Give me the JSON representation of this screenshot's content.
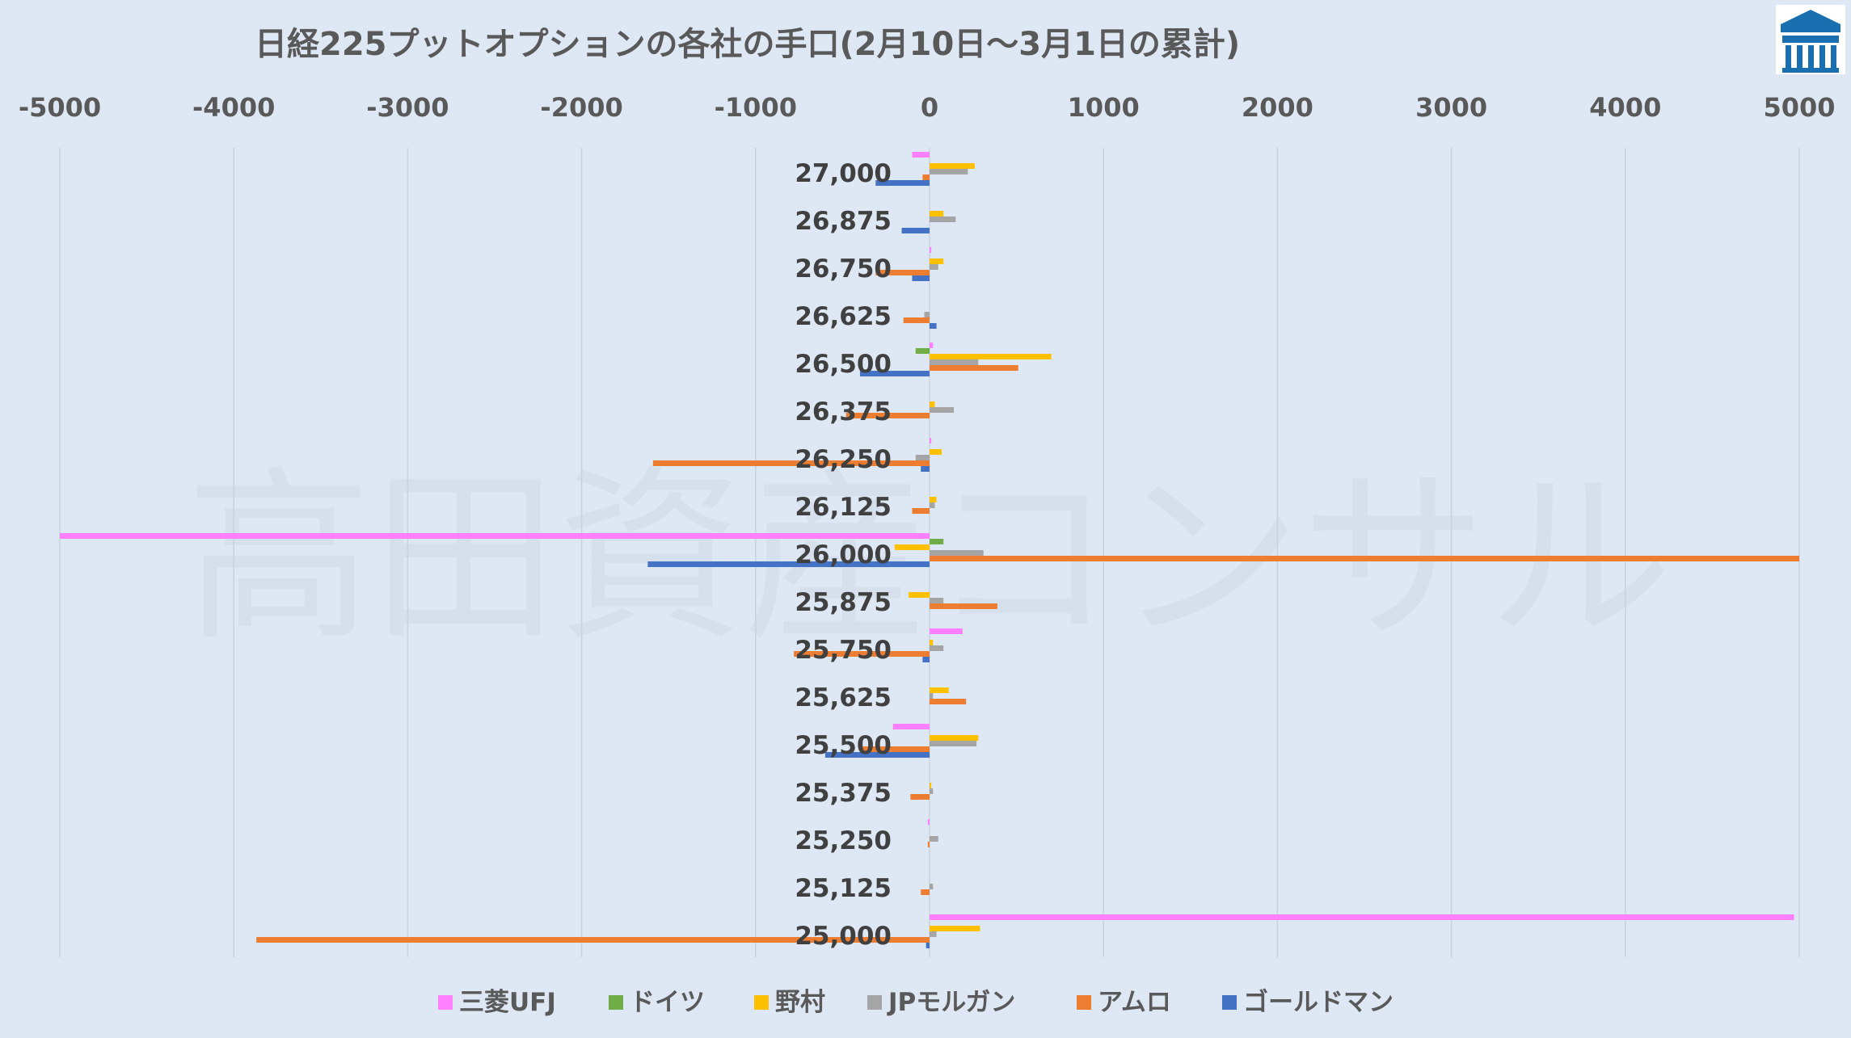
{
  "chart_data": {
    "type": "bar",
    "orientation": "horizontal",
    "title": "日経225プットオプションの各社の手口(2月10日～3月1日の累計)",
    "xlim": [
      -5000,
      5000
    ],
    "xticks": [
      "-5000",
      "-4000",
      "-3000",
      "-2000",
      "-1000",
      "0",
      "1000",
      "2000",
      "3000",
      "4000",
      "5000"
    ],
    "tick_values": [
      -5000,
      -4000,
      -3000,
      -2000,
      -1000,
      0,
      1000,
      2000,
      3000,
      4000,
      5000
    ],
    "grid": true,
    "legend_position": "bottom",
    "categories": [
      "27,000",
      "26,875",
      "26,750",
      "26,625",
      "26,500",
      "26,375",
      "26,250",
      "26,125",
      "26,000",
      "25,875",
      "25,750",
      "25,625",
      "25,500",
      "25,375",
      "25,250",
      "25,125",
      "25,000"
    ],
    "series": [
      {
        "name": "三菱UFJ",
        "color": "#ff80ff",
        "values": [
          -100,
          0,
          10,
          0,
          20,
          0,
          10,
          0,
          -5000,
          0,
          190,
          0,
          -210,
          0,
          -10,
          0,
          4970
        ]
      },
      {
        "name": "ドイツ",
        "color": "#70ad47",
        "values": [
          0,
          0,
          0,
          0,
          -80,
          0,
          0,
          0,
          80,
          0,
          0,
          0,
          0,
          0,
          0,
          0,
          0
        ]
      },
      {
        "name": "野村",
        "color": "#ffc000",
        "values": [
          260,
          80,
          80,
          0,
          700,
          30,
          70,
          40,
          -200,
          -120,
          20,
          110,
          280,
          10,
          0,
          0,
          290
        ]
      },
      {
        "name": "JPモルガン",
        "color": "#a5a5a5",
        "values": [
          220,
          150,
          50,
          -30,
          280,
          140,
          -80,
          30,
          310,
          80,
          80,
          20,
          270,
          20,
          50,
          20,
          40
        ]
      },
      {
        "name": "アムロ",
        "color": "#ed7d31",
        "values": [
          -40,
          0,
          -310,
          -150,
          510,
          -480,
          -1590,
          -100,
          5000,
          390,
          -780,
          210,
          -390,
          -110,
          -10,
          -50,
          -3870
        ]
      },
      {
        "name": "ゴールドマン",
        "color": "#4472c4",
        "values": [
          -310,
          -160,
          -100,
          40,
          -400,
          0,
          -50,
          0,
          -1620,
          0,
          -40,
          0,
          -600,
          0,
          0,
          0,
          -20
        ]
      }
    ]
  },
  "watermark": "高田資産コンサル",
  "logo": {
    "name": "company-logo",
    "color": "#1a6fb0"
  }
}
